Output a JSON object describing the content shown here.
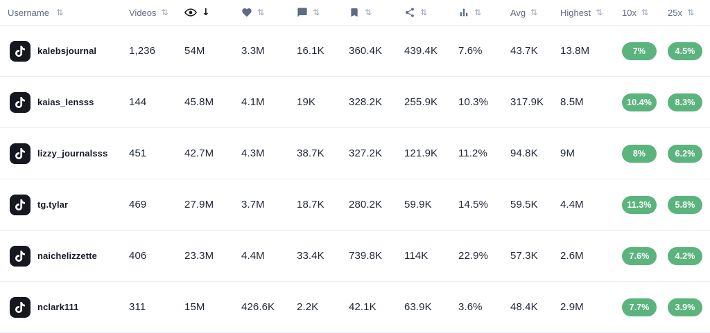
{
  "colors": {
    "pill_green": "#5bb47d",
    "header_text": "#5d6b84",
    "active_sort": "#15181e",
    "row_divider": "#e9edf2",
    "avatar_bg": "#15181e"
  },
  "glyphs": {
    "sort_both": "⇅",
    "sort_desc": "↓"
  },
  "table": {
    "columns": [
      {
        "key": "username",
        "label": "Username",
        "icon": null,
        "sort": "both"
      },
      {
        "key": "videos",
        "label": "Videos",
        "icon": null,
        "sort": "both"
      },
      {
        "key": "views",
        "label": null,
        "icon": "eye-icon",
        "sort": "desc"
      },
      {
        "key": "likes",
        "label": null,
        "icon": "heart-icon",
        "sort": "both"
      },
      {
        "key": "comments",
        "label": null,
        "icon": "comment-icon",
        "sort": "both"
      },
      {
        "key": "bookmarks",
        "label": null,
        "icon": "bookmark-icon",
        "sort": "both"
      },
      {
        "key": "shares",
        "label": null,
        "icon": "share-icon",
        "sort": "both"
      },
      {
        "key": "engagement",
        "label": null,
        "icon": "bar-chart-icon",
        "sort": "both"
      },
      {
        "key": "avg",
        "label": "Avg",
        "icon": null,
        "sort": "both"
      },
      {
        "key": "highest",
        "label": "Highest",
        "icon": null,
        "sort": "both"
      },
      {
        "key": "x10",
        "label": "10x",
        "icon": null,
        "sort": "both"
      },
      {
        "key": "x25",
        "label": "25x",
        "icon": null,
        "sort": "both"
      }
    ],
    "rows": [
      {
        "username": "kalebsjournal",
        "videos": "1,236",
        "views": "54M",
        "likes": "3.3M",
        "comments": "16.1K",
        "bookmarks": "360.4K",
        "shares": "439.4K",
        "engagement": "7.6%",
        "avg": "43.7K",
        "highest": "13.8M",
        "x10": "7%",
        "x25": "4.5%"
      },
      {
        "username": "kaias_lensss",
        "videos": "144",
        "views": "45.8M",
        "likes": "4.1M",
        "comments": "19K",
        "bookmarks": "328.2K",
        "shares": "255.9K",
        "engagement": "10.3%",
        "avg": "317.9K",
        "highest": "8.5M",
        "x10": "10.4%",
        "x25": "8.3%"
      },
      {
        "username": "lizzy_journalsss",
        "videos": "451",
        "views": "42.7M",
        "likes": "4.3M",
        "comments": "38.7K",
        "bookmarks": "327.2K",
        "shares": "121.9K",
        "engagement": "11.2%",
        "avg": "94.8K",
        "highest": "9M",
        "x10": "8%",
        "x25": "6.2%"
      },
      {
        "username": "tg.tylar",
        "videos": "469",
        "views": "27.9M",
        "likes": "3.7M",
        "comments": "18.7K",
        "bookmarks": "280.2K",
        "shares": "59.9K",
        "engagement": "14.5%",
        "avg": "59.5K",
        "highest": "4.4M",
        "x10": "11.3%",
        "x25": "5.8%"
      },
      {
        "username": "naichelizzette",
        "videos": "406",
        "views": "23.3M",
        "likes": "4.4M",
        "comments": "33.4K",
        "bookmarks": "739.8K",
        "shares": "114K",
        "engagement": "22.9%",
        "avg": "57.3K",
        "highest": "2.6M",
        "x10": "7.6%",
        "x25": "4.2%"
      },
      {
        "username": "nclark111",
        "videos": "311",
        "views": "15M",
        "likes": "426.6K",
        "comments": "2.2K",
        "bookmarks": "42.1K",
        "shares": "63.9K",
        "engagement": "3.6%",
        "avg": "48.4K",
        "highest": "2.9M",
        "x10": "7.7%",
        "x25": "3.9%"
      }
    ]
  }
}
